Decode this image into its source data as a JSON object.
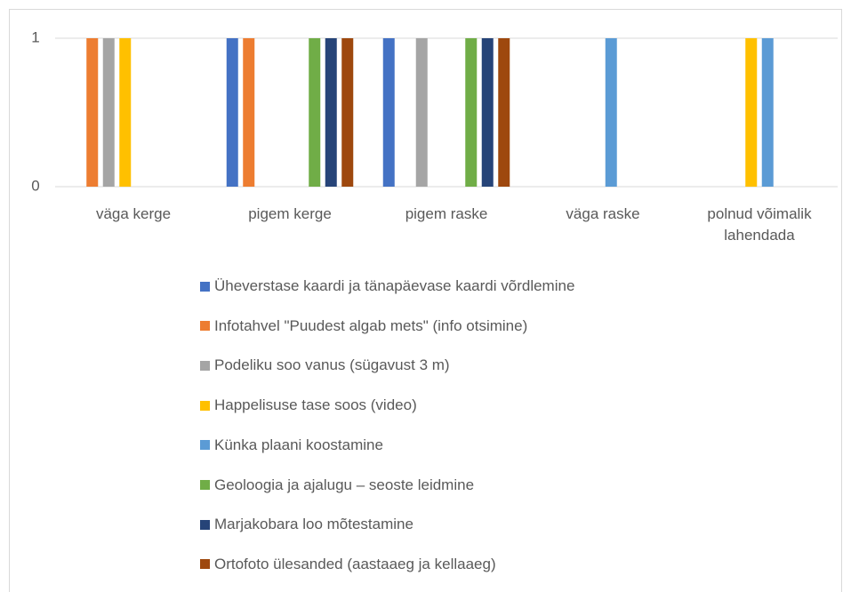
{
  "chart_data": {
    "type": "bar",
    "categories": [
      "väga kerge",
      "pigem kerge",
      "pigem raske",
      "väga raske",
      "polnud võimalik lahendada"
    ],
    "series": [
      {
        "name": "Üheverstase kaardi ja tänapäevase kaardi võrdlemine",
        "color": "#4472c4",
        "values": [
          0,
          1,
          1,
          0,
          0
        ]
      },
      {
        "name": "Infotahvel \"Puudest algab mets\" (info otsimine)",
        "color": "#ed7d31",
        "values": [
          1,
          1,
          0,
          0,
          0
        ]
      },
      {
        "name": "Podeliku soo vanus (sügavust 3 m)",
        "color": "#a5a5a5",
        "values": [
          1,
          0,
          1,
          0,
          0
        ]
      },
      {
        "name": "Happelisuse tase soos (video)",
        "color": "#ffc000",
        "values": [
          1,
          0,
          0,
          0,
          1
        ]
      },
      {
        "name": "Künka plaani koostamine",
        "color": "#5b9bd5",
        "values": [
          0,
          0,
          0,
          1,
          1
        ]
      },
      {
        "name": "Geoloogia ja ajalugu – seoste leidmine",
        "color": "#70ad47",
        "values": [
          0,
          1,
          1,
          0,
          0
        ]
      },
      {
        "name": "Marjakobara loo mõtestamine",
        "color": "#264478",
        "values": [
          0,
          1,
          1,
          0,
          0
        ]
      },
      {
        "name": "Ortofoto ülesanded (aastaaeg ja kellaaeg)",
        "color": "#9e480e",
        "values": [
          0,
          1,
          1,
          0,
          0
        ]
      }
    ],
    "ylim": [
      0,
      1
    ],
    "yticks": [
      0,
      1
    ],
    "grid": true,
    "legend": "bottom"
  }
}
